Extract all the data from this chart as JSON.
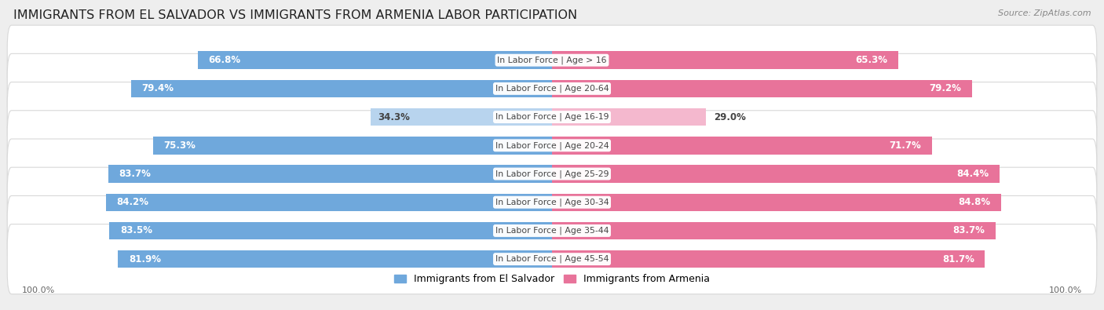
{
  "title": "IMMIGRANTS FROM EL SALVADOR VS IMMIGRANTS FROM ARMENIA LABOR PARTICIPATION",
  "source": "Source: ZipAtlas.com",
  "categories": [
    "In Labor Force | Age > 16",
    "In Labor Force | Age 20-64",
    "In Labor Force | Age 16-19",
    "In Labor Force | Age 20-24",
    "In Labor Force | Age 25-29",
    "In Labor Force | Age 30-34",
    "In Labor Force | Age 35-44",
    "In Labor Force | Age 45-54"
  ],
  "el_salvador_values": [
    66.8,
    79.4,
    34.3,
    75.3,
    83.7,
    84.2,
    83.5,
    81.9
  ],
  "armenia_values": [
    65.3,
    79.2,
    29.0,
    71.7,
    84.4,
    84.8,
    83.7,
    81.7
  ],
  "el_salvador_color": "#6fa8dc",
  "el_salvador_color_light": "#b8d4ee",
  "armenia_color": "#e8739a",
  "armenia_color_light": "#f4b8ce",
  "bg_color": "#eeeeee",
  "row_bg_color": "#f8f8f8",
  "title_fontsize": 11.5,
  "label_fontsize": 8.5,
  "legend_fontsize": 9,
  "axis_label_fontsize": 8,
  "max_value": 100.0,
  "bar_height": 0.62,
  "center_label_color": "#444444",
  "threshold": 50
}
